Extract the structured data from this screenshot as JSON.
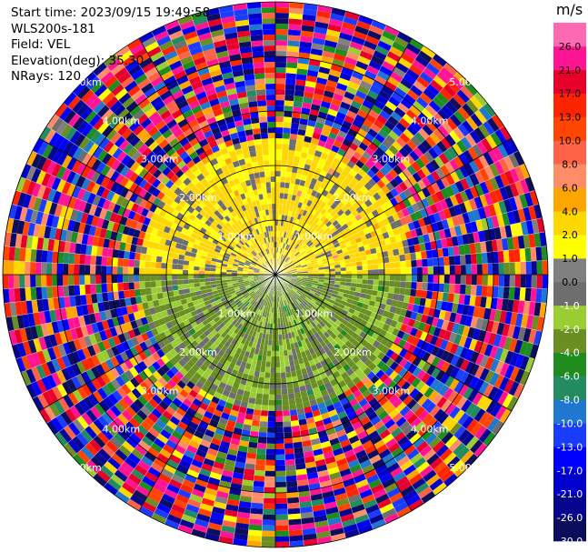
{
  "info": {
    "start_time": "Start time: 2023/09/15 19:49:58",
    "instrument": "WLS200s-181",
    "field": "Field: VEL",
    "elevation": "Elevation(deg): 35.30",
    "nrays": "NRays: 120"
  },
  "chart_data": {
    "type": "heatmap",
    "subtype": "polar-ppi",
    "field": "VEL",
    "units": "m/s",
    "elevation_deg": 35.3,
    "n_rays": 120,
    "range_rings_km": [
      1.0,
      2.0,
      3.0,
      4.0,
      5.0
    ],
    "range_ring_labels": [
      "1.00km",
      "2.00km",
      "3.00km",
      "4.00km",
      "5.00km"
    ],
    "colorbar": {
      "units_label": "m/s",
      "boundaries": [
        -30.0,
        -26.0,
        -21.0,
        -17.0,
        -13.0,
        -10.0,
        -8.0,
        -6.0,
        -4.0,
        -2.0,
        -1.0,
        0.0,
        1.0,
        2.0,
        4.0,
        6.0,
        8.0,
        10.0,
        13.0,
        17.0,
        21.0,
        26.0
      ],
      "tick_labels": [
        "-30.0",
        "-26.0",
        "-21.0",
        "-17.0",
        "-13.0",
        "-10.0",
        "-8.0",
        "-6.0",
        "-4.0",
        "-2.0",
        "-1.0",
        "0.0",
        "1.0",
        "2.0",
        "4.0",
        "6.0",
        "8.0",
        "10.0",
        "13.0",
        "17.0",
        "21.0",
        "26.0"
      ],
      "colors": [
        "#0d0d5e",
        "#050590",
        "#0000cd",
        "#0000ff",
        "#1a3cff",
        "#1f77d0",
        "#228b60",
        "#1e8c1e",
        "#6b8e23",
        "#9acd32",
        "#6e6e6e",
        "#808080",
        "#ffff00",
        "#ffd700",
        "#ffa500",
        "#ff8c69",
        "#ff6347",
        "#ff4500",
        "#ff2400",
        "#e8002a",
        "#ff1493",
        "#ff69b4"
      ]
    },
    "pattern": {
      "inner_range_km": 2.5,
      "north_half": "positive 1.0 to 4.0 m/s (yellow)",
      "south_half": "negative -1.0 to -4.0 m/s (green)",
      "outer_range_km": "2.5 to 5.0, random noise across full colour scale"
    }
  }
}
